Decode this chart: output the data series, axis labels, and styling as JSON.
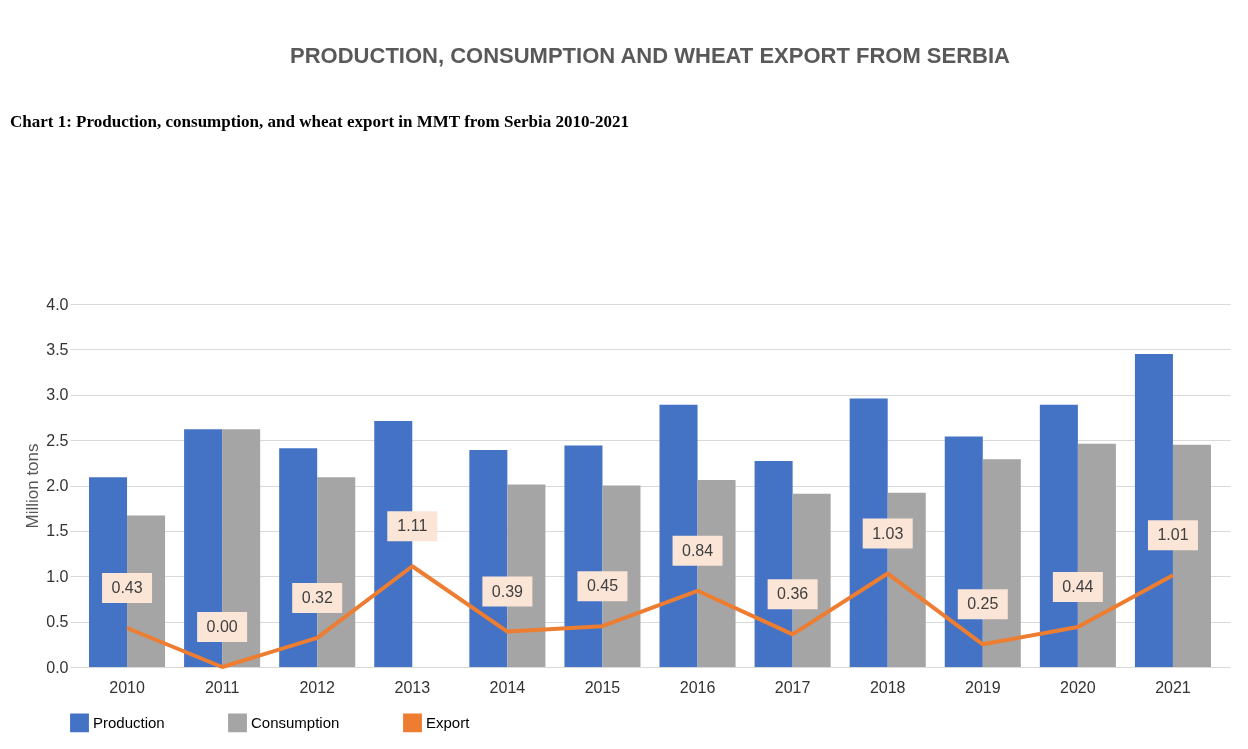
{
  "chart_data": {
    "type": "bar",
    "title": "PRODUCTION, CONSUMPTION AND WHEAT EXPORT FROM SERBIA",
    "ylabel": "Million tons",
    "annotations": [
      "Chart 1: Production, consumption, and wheat export in MMT from Serbia 2010-2021"
    ],
    "categories": [
      "2010",
      "2011",
      "2012",
      "2013",
      "2014",
      "2015",
      "2016",
      "2017",
      "2018",
      "2019",
      "2020",
      "2021"
    ],
    "series": [
      {
        "name": "Production",
        "color": "#4472c4",
        "values": [
          2.09,
          2.62,
          2.41,
          2.71,
          2.39,
          2.44,
          2.89,
          2.27,
          2.96,
          2.54,
          2.89,
          3.45
        ]
      },
      {
        "name": "Consumption",
        "color": "#a5a5a5",
        "values": [
          1.67,
          2.62,
          2.09,
          null,
          2.01,
          2.0,
          2.06,
          1.91,
          1.92,
          2.29,
          2.46,
          2.45
        ]
      },
      {
        "name": "Export",
        "type": "line",
        "color": "#ed7d31",
        "values": [
          0.43,
          0.0,
          0.32,
          1.11,
          0.39,
          0.45,
          0.84,
          0.36,
          1.03,
          0.25,
          0.44,
          1.01
        ],
        "value_labels": [
          "0.43",
          "0.00",
          "0.32",
          "1.11",
          "0.39",
          "0.45",
          "0.84",
          "0.36",
          "1.03",
          "0.25",
          "0.44",
          "1.01"
        ]
      }
    ],
    "ylim": [
      0,
      4.0
    ],
    "yticks": [
      {
        "value": 0,
        "label": "0.0"
      },
      0.5,
      {
        "value": 1,
        "label": "1.0"
      },
      1.5,
      {
        "value": 2,
        "label": "2.0"
      },
      2.5,
      {
        "value": 3,
        "label": "3.0"
      },
      3.5,
      {
        "value": 4,
        "label": "4.0"
      }
    ],
    "grid": "y",
    "legend": "bottom"
  }
}
